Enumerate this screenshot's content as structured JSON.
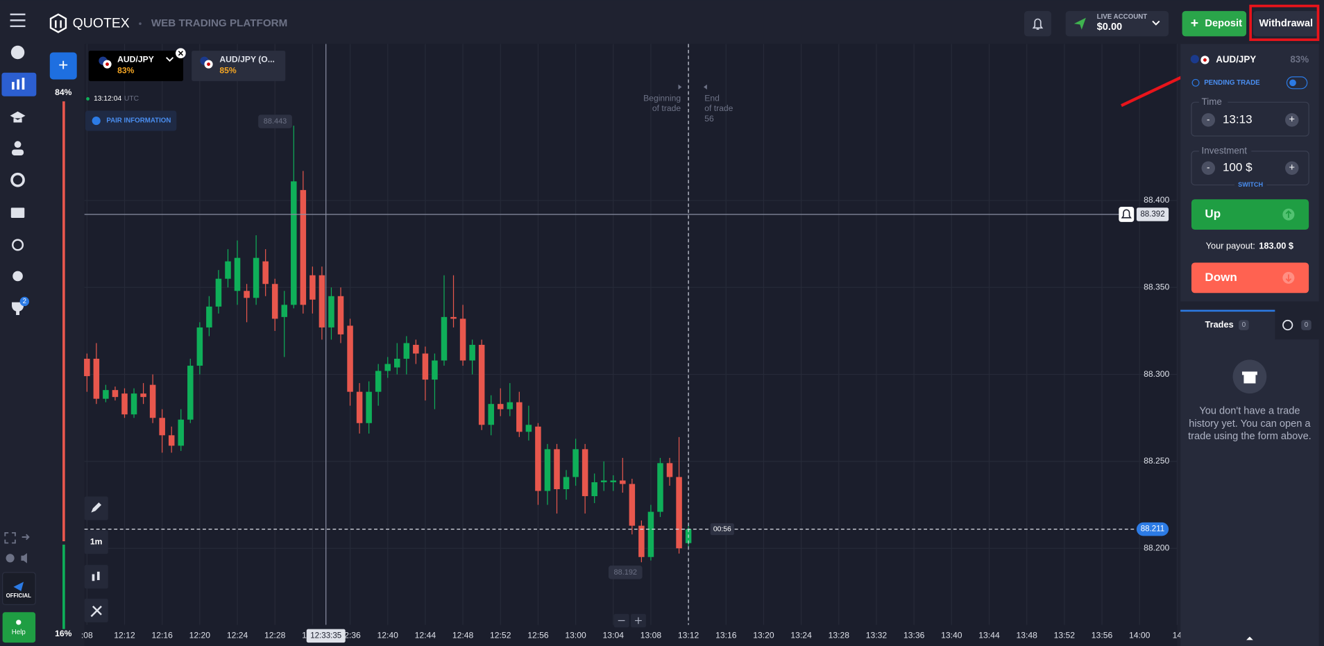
{
  "header": {
    "brand": "QUOTEX",
    "platform": "WEB TRADING PLATFORM",
    "account_type": "LIVE ACCOUNT",
    "balance": "$0.00",
    "deposit": "Deposit",
    "withdrawal": "Withdrawal"
  },
  "sidebar": {
    "badge": "2",
    "official": "OFFICIAL",
    "help": "Help",
    "sentiment_up": "84%",
    "sentiment_down": "16%"
  },
  "tabs": [
    {
      "asset": "AUD/JPY",
      "payout": "83%"
    },
    {
      "asset": "AUD/JPY (O...",
      "payout": "85%"
    }
  ],
  "chart_data": {
    "type": "candlestick",
    "clock": "13:12:04",
    "clock_zone": "UTC",
    "pair_info": "PAIR INFORMATION",
    "timeframe": "1m",
    "begin_annotation": [
      "Beginning",
      "of trade"
    ],
    "end_annotation": [
      "End",
      "of trade",
      "56"
    ],
    "max_label": "88.443",
    "min_label": "88.192",
    "crosshair_price": "88.392",
    "crosshair_time": "12:33:35",
    "current_price": "88.211",
    "countdown": "00:56",
    "up_color": "#0faf59",
    "down_color": "#e8574d",
    "ylim": [
      88.156,
      88.49
    ],
    "yticks": [
      {
        "value": 88.4,
        "label": "88.400"
      },
      {
        "value": 88.35,
        "label": "88.350"
      },
      {
        "value": 88.3,
        "label": "88.300"
      },
      {
        "value": 88.25,
        "label": "88.250"
      },
      {
        "value": 88.2,
        "label": "88.200"
      }
    ],
    "xticks": [
      ":08",
      "12:12",
      "12:16",
      "12:20",
      "12:24",
      "12:28",
      "12:32",
      "12:36",
      "12:40",
      "12:44",
      "12:48",
      "12:52",
      "12:56",
      "13:00",
      "13:04",
      "13:08",
      "13:12",
      "13:16",
      "13:20",
      "13:24",
      "13:28",
      "13:32",
      "13:36",
      "13:40",
      "13:44",
      "13:48",
      "13:52",
      "13:56",
      "14:00",
      "14"
    ],
    "candles": [
      {
        "o": 88.309,
        "h": 88.312,
        "l": 88.29,
        "c": 88.299
      },
      {
        "o": 88.309,
        "h": 88.318,
        "l": 88.283,
        "c": 88.286
      },
      {
        "o": 88.286,
        "h": 88.294,
        "l": 88.284,
        "c": 88.291
      },
      {
        "o": 88.291,
        "h": 88.293,
        "l": 88.285,
        "c": 88.287
      },
      {
        "o": 88.289,
        "h": 88.292,
        "l": 88.275,
        "c": 88.277
      },
      {
        "o": 88.277,
        "h": 88.292,
        "l": 88.275,
        "c": 88.289
      },
      {
        "o": 88.289,
        "h": 88.295,
        "l": 88.283,
        "c": 88.287
      },
      {
        "o": 88.294,
        "h": 88.3,
        "l": 88.272,
        "c": 88.275
      },
      {
        "o": 88.275,
        "h": 88.28,
        "l": 88.255,
        "c": 88.265
      },
      {
        "o": 88.265,
        "h": 88.27,
        "l": 88.255,
        "c": 88.259
      },
      {
        "o": 88.259,
        "h": 88.28,
        "l": 88.256,
        "c": 88.274
      },
      {
        "o": 88.274,
        "h": 88.309,
        "l": 88.272,
        "c": 88.305
      },
      {
        "o": 88.305,
        "h": 88.33,
        "l": 88.3,
        "c": 88.327
      },
      {
        "o": 88.327,
        "h": 88.345,
        "l": 88.322,
        "c": 88.339
      },
      {
        "o": 88.339,
        "h": 88.36,
        "l": 88.335,
        "c": 88.355
      },
      {
        "o": 88.355,
        "h": 88.372,
        "l": 88.35,
        "c": 88.365
      },
      {
        "o": 88.348,
        "h": 88.377,
        "l": 88.34,
        "c": 88.367
      },
      {
        "o": 88.348,
        "h": 88.352,
        "l": 88.33,
        "c": 88.344
      },
      {
        "o": 88.344,
        "h": 88.38,
        "l": 88.34,
        "c": 88.367
      },
      {
        "o": 88.365,
        "h": 88.372,
        "l": 88.345,
        "c": 88.352
      },
      {
        "o": 88.352,
        "h": 88.355,
        "l": 88.325,
        "c": 88.332
      },
      {
        "o": 88.333,
        "h": 88.348,
        "l": 88.31,
        "c": 88.34
      },
      {
        "o": 88.34,
        "h": 88.443,
        "l": 88.338,
        "c": 88.411
      },
      {
        "o": 88.406,
        "h": 88.417,
        "l": 88.335,
        "c": 88.34
      },
      {
        "o": 88.357,
        "h": 88.362,
        "l": 88.335,
        "c": 88.343
      },
      {
        "o": 88.357,
        "h": 88.362,
        "l": 88.32,
        "c": 88.327
      },
      {
        "o": 88.327,
        "h": 88.35,
        "l": 88.32,
        "c": 88.345
      },
      {
        "o": 88.345,
        "h": 88.35,
        "l": 88.318,
        "c": 88.323
      },
      {
        "o": 88.328,
        "h": 88.332,
        "l": 88.282,
        "c": 88.29
      },
      {
        "o": 88.29,
        "h": 88.295,
        "l": 88.266,
        "c": 88.272
      },
      {
        "o": 88.272,
        "h": 88.296,
        "l": 88.266,
        "c": 88.29
      },
      {
        "o": 88.29,
        "h": 88.306,
        "l": 88.282,
        "c": 88.302
      },
      {
        "o": 88.302,
        "h": 88.31,
        "l": 88.298,
        "c": 88.306
      },
      {
        "o": 88.304,
        "h": 88.318,
        "l": 88.3,
        "c": 88.309
      },
      {
        "o": 88.309,
        "h": 88.322,
        "l": 88.3,
        "c": 88.318
      },
      {
        "o": 88.317,
        "h": 88.32,
        "l": 88.306,
        "c": 88.312
      },
      {
        "o": 88.312,
        "h": 88.316,
        "l": 88.285,
        "c": 88.297
      },
      {
        "o": 88.297,
        "h": 88.312,
        "l": 88.28,
        "c": 88.308
      },
      {
        "o": 88.308,
        "h": 88.357,
        "l": 88.305,
        "c": 88.333
      },
      {
        "o": 88.333,
        "h": 88.357,
        "l": 88.327,
        "c": 88.332
      },
      {
        "o": 88.332,
        "h": 88.34,
        "l": 88.305,
        "c": 88.308
      },
      {
        "o": 88.308,
        "h": 88.32,
        "l": 88.3,
        "c": 88.317
      },
      {
        "o": 88.317,
        "h": 88.32,
        "l": 88.268,
        "c": 88.271
      },
      {
        "o": 88.271,
        "h": 88.288,
        "l": 88.265,
        "c": 88.283
      },
      {
        "o": 88.283,
        "h": 88.292,
        "l": 88.276,
        "c": 88.28
      },
      {
        "o": 88.28,
        "h": 88.295,
        "l": 88.276,
        "c": 88.284
      },
      {
        "o": 88.284,
        "h": 88.29,
        "l": 88.264,
        "c": 88.267
      },
      {
        "o": 88.267,
        "h": 88.282,
        "l": 88.262,
        "c": 88.271
      },
      {
        "o": 88.27,
        "h": 88.272,
        "l": 88.225,
        "c": 88.233
      },
      {
        "o": 88.233,
        "h": 88.26,
        "l": 88.225,
        "c": 88.257
      },
      {
        "o": 88.257,
        "h": 88.26,
        "l": 88.22,
        "c": 88.234
      },
      {
        "o": 88.234,
        "h": 88.245,
        "l": 88.228,
        "c": 88.241
      },
      {
        "o": 88.241,
        "h": 88.263,
        "l": 88.236,
        "c": 88.257
      },
      {
        "o": 88.257,
        "h": 88.26,
        "l": 88.22,
        "c": 88.23
      },
      {
        "o": 88.23,
        "h": 88.243,
        "l": 88.226,
        "c": 88.238
      },
      {
        "o": 88.238,
        "h": 88.25,
        "l": 88.233,
        "c": 88.239
      },
      {
        "o": 88.238,
        "h": 88.242,
        "l": 88.233,
        "c": 88.239
      },
      {
        "o": 88.239,
        "h": 88.252,
        "l": 88.232,
        "c": 88.237
      },
      {
        "o": 88.237,
        "h": 88.24,
        "l": 88.208,
        "c": 88.213
      },
      {
        "o": 88.213,
        "h": 88.216,
        "l": 88.192,
        "c": 88.195
      },
      {
        "o": 88.195,
        "h": 88.225,
        "l": 88.193,
        "c": 88.221
      },
      {
        "o": 88.221,
        "h": 88.252,
        "l": 88.218,
        "c": 88.249
      },
      {
        "o": 88.249,
        "h": 88.252,
        "l": 88.236,
        "c": 88.241
      },
      {
        "o": 88.241,
        "h": 88.264,
        "l": 88.197,
        "c": 88.2
      },
      {
        "o": 88.203,
        "h": 88.214,
        "l": 88.201,
        "c": 88.211
      }
    ]
  },
  "trade_panel": {
    "asset": "AUD/JPY",
    "payout": "83%",
    "pending": "PENDING TRADE",
    "time_label": "Time",
    "time": "13:13",
    "investment_label": "Investment",
    "investment": "100 $",
    "switch": "SWITCH",
    "up": "Up",
    "payout_label": "Your payout:",
    "payout_value": "183.00 $",
    "down": "Down",
    "trades_tab": "Trades",
    "trades_count": "0",
    "history_count": "0",
    "empty": [
      "You don't have a trade",
      "history yet. You can open a",
      "trade using the form above."
    ]
  }
}
